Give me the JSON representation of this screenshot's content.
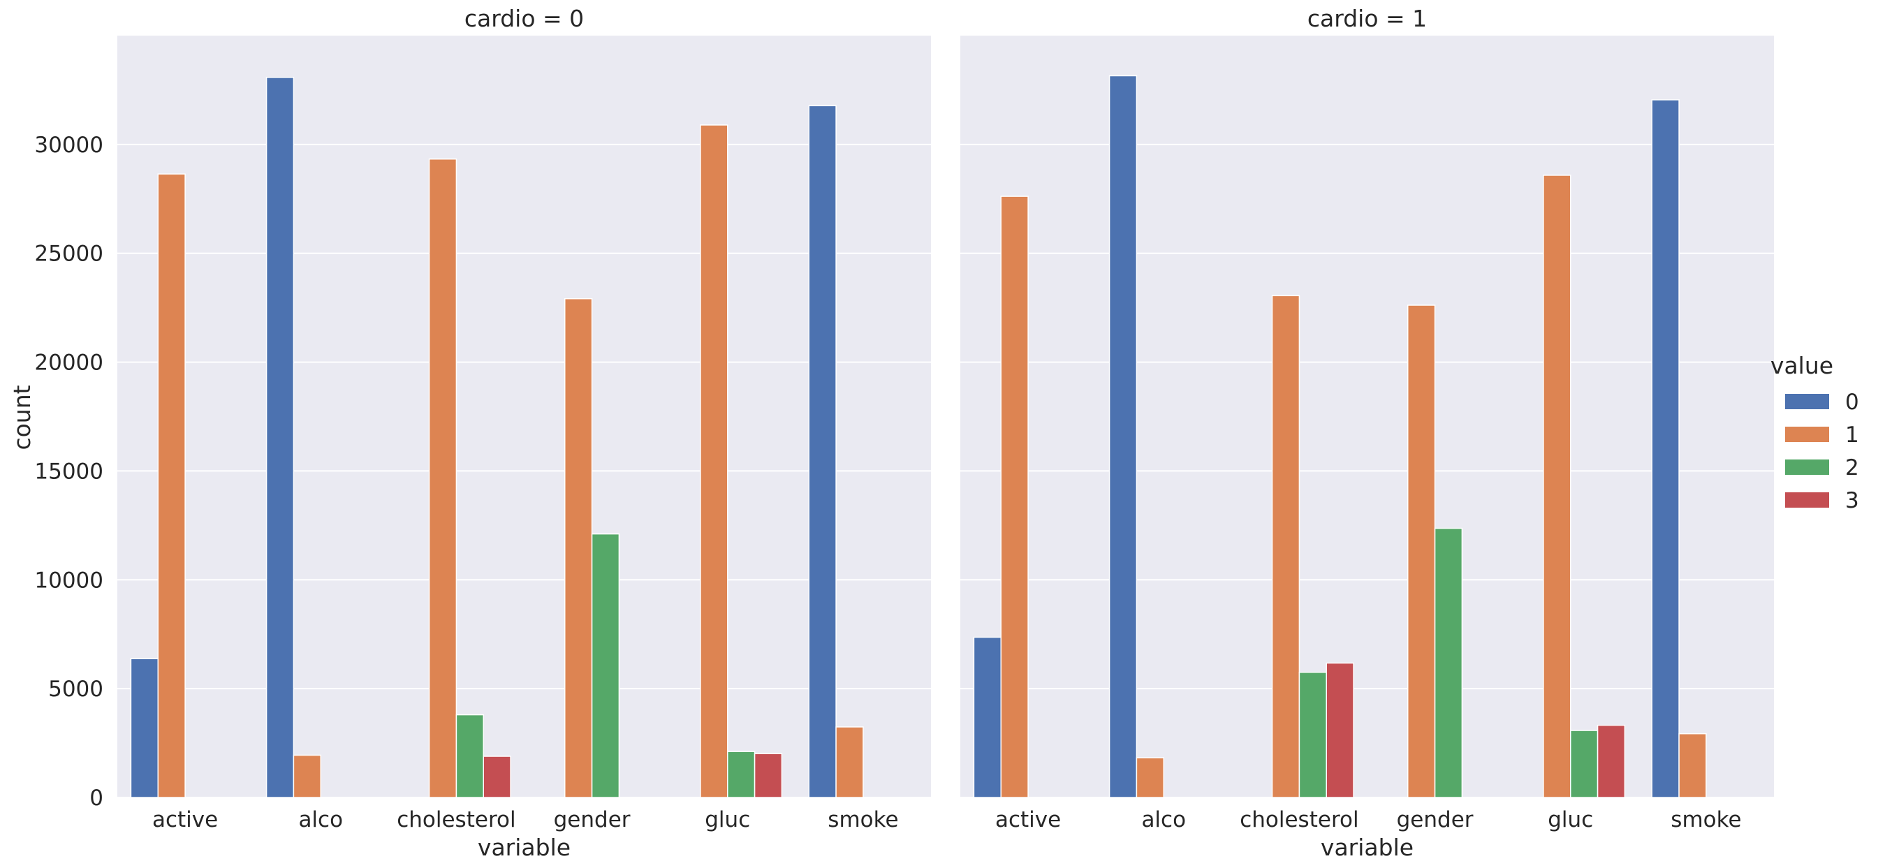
{
  "chart_data": {
    "type": "bar",
    "categories": [
      "active",
      "alco",
      "cholesterol",
      "gender",
      "gluc",
      "smoke"
    ],
    "hue_levels": [
      "0",
      "1",
      "2",
      "3"
    ],
    "colors": [
      "#4c72b0",
      "#dd8452",
      "#55a868",
      "#c44e52"
    ],
    "background": "#eaeaf2",
    "grid": true,
    "legend_placement": "right",
    "legend_title": "value",
    "xlabel": "variable",
    "ylabel": "count",
    "ylim": [
      0,
      35000
    ],
    "yticks": [
      0,
      5000,
      10000,
      15000,
      20000,
      25000,
      30000
    ],
    "panels": [
      {
        "title": "cardio = 0",
        "series": [
          {
            "name": "0",
            "values": [
              6378,
              33080,
              null,
              null,
              null,
              31781
            ]
          },
          {
            "name": "1",
            "values": [
              28643,
              1941,
              29330,
              22914,
              30894,
              3240
            ]
          },
          {
            "name": "2",
            "values": [
              null,
              null,
              3799,
              12107,
              2112,
              null
            ]
          },
          {
            "name": "3",
            "values": [
              null,
              null,
              1892,
              null,
              2015,
              null
            ]
          }
        ]
      },
      {
        "title": "cardio = 1",
        "series": [
          {
            "name": "0",
            "values": [
              7361,
              33156,
              null,
              null,
              null,
              32050
            ]
          },
          {
            "name": "1",
            "values": [
              27618,
              1823,
              23055,
              22616,
              28585,
              2929
            ]
          },
          {
            "name": "2",
            "values": [
              null,
              null,
              5750,
              12365,
              3078,
              null
            ]
          },
          {
            "name": "3",
            "values": [
              null,
              null,
              6174,
              null,
              3316,
              null
            ]
          }
        ]
      }
    ]
  }
}
